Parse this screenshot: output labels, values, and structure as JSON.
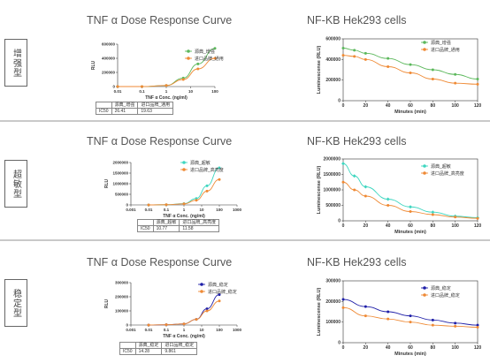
{
  "panels": [
    {
      "label": "增强型",
      "title_left": "TNF α Dose Response Curve",
      "title_right": "NF-KB Hek293 cells",
      "ic50": {
        "col1": "源典_增强",
        "col2": "进口品牌_通用",
        "row_label": "IC50",
        "v1": "26.41",
        "v2": "19.63"
      }
    },
    {
      "label": "超敏型",
      "title_left": "TNF α Dose Response Curve",
      "title_right": "NF-KB Hek293 cells",
      "ic50": {
        "col1": "源典_超敏",
        "col2": "进口品牌_高亮度",
        "row_label": "IC50",
        "v1": "10.77",
        "v2": "11.58"
      }
    },
    {
      "label": "稳定型",
      "title_left": "TNF α Dose Response Curve",
      "title_right": "NF-KB Hek293 cells",
      "ic50": {
        "col1": "源典_稳定",
        "col2": "进口品牌_稳定",
        "row_label": "IC50",
        "v1": "14.28",
        "v2": "9.861"
      }
    }
  ],
  "chart_data": [
    {
      "type": "line",
      "scale_x": "log",
      "title": "TNF α Dose Response Curve",
      "xlabel": "TNF α Conc. (ng/ml)",
      "ylabel": "RLU",
      "x_ticks": [
        "0.01",
        "0.1",
        "1",
        "10",
        "100"
      ],
      "y_ticks": [
        "0",
        "200000",
        "400000",
        "600000"
      ],
      "xlim": [
        0.01,
        100
      ],
      "ylim": [
        0,
        600000
      ],
      "legend": "right",
      "series": [
        {
          "name": "源典_增强",
          "color": "#5cb85c",
          "marker": "circle",
          "x": [
            0.01,
            0.1,
            1,
            5,
            20,
            100
          ],
          "y": [
            0,
            0,
            15000,
            120000,
            320000,
            540000
          ]
        },
        {
          "name": "进口品牌_通用",
          "color": "#ef8a35",
          "marker": "circle",
          "x": [
            0.01,
            0.1,
            1,
            5,
            20,
            100
          ],
          "y": [
            0,
            0,
            15000,
            100000,
            250000,
            400000
          ]
        }
      ]
    },
    {
      "type": "line",
      "title": "NF-KB Hek293 cells",
      "xlabel": "Minutes (min)",
      "ylabel": "Luminescense (RLU)",
      "x_ticks": [
        "0",
        "20",
        "40",
        "60",
        "80",
        "100",
        "120"
      ],
      "y_ticks": [
        "0",
        "200000",
        "400000",
        "600000"
      ],
      "xlim": [
        0,
        120
      ],
      "ylim": [
        0,
        600000
      ],
      "legend": "top-right",
      "series": [
        {
          "name": "源典_增强",
          "color": "#5cb85c",
          "marker": "circle",
          "x": [
            0,
            10,
            20,
            40,
            60,
            80,
            100,
            120
          ],
          "y": [
            510000,
            490000,
            460000,
            410000,
            350000,
            300000,
            255000,
            210000
          ]
        },
        {
          "name": "进口品牌_通用",
          "color": "#ef8a35",
          "marker": "circle",
          "x": [
            0,
            10,
            20,
            40,
            60,
            80,
            100,
            120
          ],
          "y": [
            440000,
            430000,
            400000,
            330000,
            270000,
            210000,
            170000,
            160000
          ]
        }
      ]
    },
    {
      "type": "line",
      "scale_x": "log",
      "title": "TNF α Dose Response Curve",
      "xlabel": "TNF α Conc. (ng/ml)",
      "ylabel": "RLU",
      "x_ticks": [
        "0.001",
        "0.01",
        "0.1",
        "1",
        "10",
        "100",
        "1000"
      ],
      "y_ticks": [
        "0",
        "500000",
        "1000000",
        "1500000",
        "2000000"
      ],
      "xlim": [
        0.001,
        1000
      ],
      "ylim": [
        0,
        2000000
      ],
      "legend": "right",
      "series": [
        {
          "name": "源典_超敏",
          "color": "#3ed6c0",
          "marker": "circle",
          "x": [
            0.01,
            0.1,
            1,
            5,
            20,
            100
          ],
          "y": [
            0,
            10000,
            60000,
            300000,
            900000,
            1750000
          ]
        },
        {
          "name": "进口品牌_高亮度",
          "color": "#ef8a35",
          "marker": "circle",
          "x": [
            0.01,
            0.1,
            1,
            5,
            20,
            100
          ],
          "y": [
            0,
            10000,
            50000,
            220000,
            650000,
            1200000
          ]
        }
      ]
    },
    {
      "type": "line",
      "title": "NF-KB Hek293 cells",
      "xlabel": "Minutes (min)",
      "ylabel": "Luminescense (RLU)",
      "x_ticks": [
        "0",
        "20",
        "40",
        "60",
        "80",
        "100",
        "120"
      ],
      "y_ticks": [
        "0",
        "500000",
        "1000000",
        "1500000",
        "2000000"
      ],
      "xlim": [
        0,
        120
      ],
      "ylim": [
        0,
        2000000
      ],
      "legend": "top-right",
      "series": [
        {
          "name": "源典_超敏",
          "color": "#3ed6c0",
          "marker": "diamond",
          "x": [
            0,
            10,
            20,
            40,
            60,
            80,
            100,
            120
          ],
          "y": [
            1850000,
            1450000,
            1100000,
            700000,
            450000,
            280000,
            150000,
            100000
          ]
        },
        {
          "name": "进口品牌_高亮度",
          "color": "#ef8a35",
          "marker": "circle",
          "x": [
            0,
            10,
            20,
            40,
            60,
            80,
            100,
            120
          ],
          "y": [
            1250000,
            1000000,
            800000,
            500000,
            300000,
            200000,
            120000,
            80000
          ]
        }
      ]
    },
    {
      "type": "line",
      "scale_x": "log",
      "title": "TNF α Dose Response Curve",
      "xlabel": "TNF α Conc. (ng/ml)",
      "ylabel": "RLU",
      "x_ticks": [
        "0.001",
        "0.01",
        "0.1",
        "1",
        "10",
        "100",
        "1000"
      ],
      "y_ticks": [
        "0",
        "100000",
        "200000",
        "300000"
      ],
      "xlim": [
        0.001,
        1000
      ],
      "ylim": [
        0,
        300000
      ],
      "legend": "right",
      "series": [
        {
          "name": "源典_稳定",
          "color": "#1f1fa8",
          "marker": "circle",
          "x": [
            0.01,
            0.1,
            1,
            5,
            20,
            100
          ],
          "y": [
            0,
            2000,
            8000,
            40000,
            115000,
            215000
          ]
        },
        {
          "name": "进口品牌_稳定",
          "color": "#ef8a35",
          "marker": "circle",
          "x": [
            0.01,
            0.1,
            1,
            5,
            20,
            100
          ],
          "y": [
            0,
            2000,
            8000,
            40000,
            100000,
            170000
          ]
        }
      ]
    },
    {
      "type": "line",
      "title": "NF-KB Hek293 cells",
      "xlabel": "Minutes (min)",
      "ylabel": "Luminescense (RLU)",
      "x_ticks": [
        "0",
        "20",
        "40",
        "60",
        "80",
        "100",
        "120"
      ],
      "y_ticks": [
        "0",
        "100000",
        "200000",
        "300000"
      ],
      "xlim": [
        0,
        120
      ],
      "ylim": [
        0,
        300000
      ],
      "legend": "top-right",
      "series": [
        {
          "name": "源典_稳定",
          "color": "#1f1fa8",
          "marker": "circle",
          "x": [
            0,
            20,
            40,
            60,
            80,
            100,
            120
          ],
          "y": [
            210000,
            175000,
            150000,
            130000,
            110000,
            95000,
            85000
          ]
        },
        {
          "name": "进口品牌_稳定",
          "color": "#ef8a35",
          "marker": "circle",
          "x": [
            0,
            20,
            40,
            60,
            80,
            100,
            120
          ],
          "y": [
            170000,
            130000,
            115000,
            100000,
            85000,
            80000,
            75000
          ]
        }
      ]
    }
  ]
}
